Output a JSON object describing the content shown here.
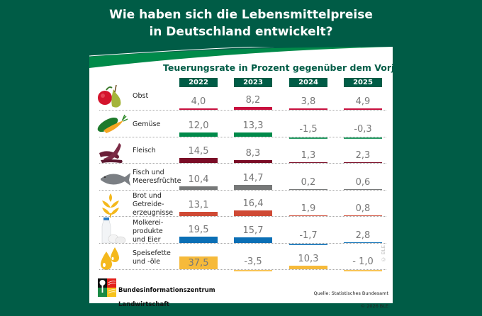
{
  "title": "Wie haben sich die Lebensmittelpreise\nin Deutschland entwickelt?",
  "title_line1": "Wie haben sich die Lebensmittelpreise",
  "title_line2": "in Deutschland entwickelt?",
  "footer": {
    "org_line1": "Bundesinformationszentrum",
    "org_line2": "Landwirtschaft",
    "source_line1": "Quelle: Statistisches Bundesamt",
    "source_line2": "© 2026 BLE",
    "vertical_credit": "© BLE"
  },
  "colors": {
    "background": "#005c46",
    "header_green": "#005c46",
    "accent_green": "#008a4a"
  },
  "chart_data": {
    "type": "bar",
    "title": "Teuerungsrate in Prozent gegenüber dem Vorjahr",
    "categories": [
      "2022",
      "2023",
      "2024",
      "2025"
    ],
    "unit": "Prozent",
    "rows": [
      {
        "label": "Obst",
        "icon": "fruit-icon",
        "color": "#c8103e",
        "values": [
          4.0,
          8.2,
          3.8,
          4.9
        ],
        "labels": [
          "4,0",
          "8,2",
          "3,8",
          "4,9"
        ]
      },
      {
        "label": "Gemüse",
        "icon": "vegetable-icon",
        "color": "#008a4a",
        "values": [
          12.0,
          13.3,
          -1.5,
          -0.3
        ],
        "labels": [
          "12,0",
          "13,3",
          "-1,5",
          "-0,3"
        ]
      },
      {
        "label": "Fleisch",
        "icon": "sausage-icon",
        "color": "#7a0c26",
        "values": [
          14.5,
          8.3,
          1.3,
          2.3
        ],
        "labels": [
          "14,5",
          "8,3",
          "1,3",
          "2,3"
        ]
      },
      {
        "label": "Fisch und\nMeeresfrüchte",
        "icon": "fish-icon",
        "color": "#767878",
        "values": [
          10.4,
          14.7,
          0.2,
          0.6
        ],
        "labels": [
          "10,4",
          "14,7",
          "0,2",
          "0,6"
        ]
      },
      {
        "label": "Brot und\nGetreide-\nerzeugnisse",
        "icon": "grain-icon",
        "color": "#cf4a35",
        "values": [
          13.1,
          16.4,
          1.9,
          0.8
        ],
        "labels": [
          "13,1",
          "16,4",
          "1,9",
          "0,8"
        ]
      },
      {
        "label": "Molkerei-\nprodukte\nund Eier",
        "icon": "milk-eggs-icon",
        "color": "#0b6fb5",
        "values": [
          19.5,
          15.7,
          -1.7,
          2.8
        ],
        "labels": [
          "19,5",
          "15,7",
          "-1,7",
          "2,8"
        ]
      },
      {
        "label": "Speisefette\nund -öle",
        "icon": "oil-drops-icon",
        "color": "#f6ba3a",
        "values": [
          37.5,
          -3.5,
          10.3,
          -1.0
        ],
        "labels": [
          "37,5",
          "-3,5",
          "10,3",
          "- 1,0"
        ]
      }
    ]
  }
}
